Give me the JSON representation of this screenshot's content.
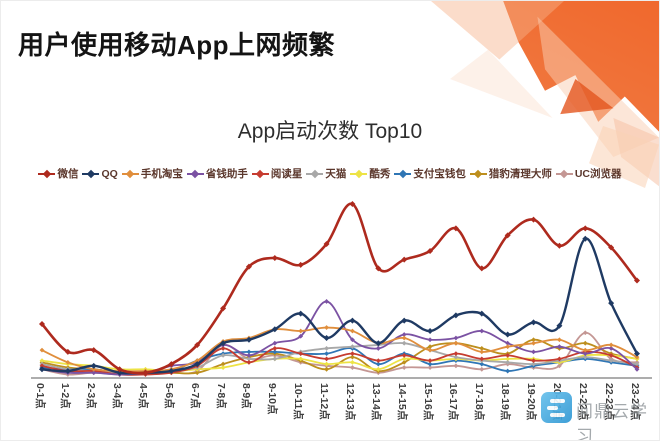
{
  "header": {
    "title": "用户使用移动App上网频繁"
  },
  "watermark": {
    "text": "问鼎云学习",
    "logo": "three-bars-app-logo",
    "logo_color": "#47ABDF"
  },
  "colors": {
    "decoration_accent": "#ED6A2D",
    "axis_line": "#ADADAD",
    "legend_text": "#5B372C"
  },
  "chart_data": {
    "type": "line",
    "title": "App启动次数 Top10",
    "legend_position": "top",
    "grid": false,
    "y_axis_visible": false,
    "ylim": [
      0,
      112
    ],
    "value_scale": "relative 0-100 (chart shows no numeric y labels)",
    "categories": [
      "0-1点",
      "1-2点",
      "2-3点",
      "3-4点",
      "4-5点",
      "5-6点",
      "6-7点",
      "7-8点",
      "8-9点",
      "9-10点",
      "10-11点",
      "11-12点",
      "12-13点",
      "13-14点",
      "14-15点",
      "15-16点",
      "16-17点",
      "17-18点",
      "18-19点",
      "19-20点",
      "20-21点",
      "21-22点",
      "22-23点",
      "23-24点"
    ],
    "series": [
      {
        "name": "微信",
        "color": "#AE2A1E",
        "values": [
          31,
          15,
          16,
          5,
          3,
          8,
          19,
          40,
          64,
          69,
          65,
          77,
          100,
          63,
          68,
          73,
          86,
          63,
          82,
          91,
          76,
          86,
          75,
          56
        ]
      },
      {
        "name": "QQ",
        "color": "#1F3A63",
        "values": [
          5,
          4,
          7,
          3,
          3,
          4,
          8,
          20,
          22,
          28,
          37,
          23,
          33,
          20,
          33,
          27,
          36,
          37,
          25,
          32,
          30,
          80,
          43,
          14
        ]
      },
      {
        "name": "手机淘宝",
        "color": "#E08E3C",
        "values": [
          16,
          9,
          5,
          4,
          4,
          5,
          10,
          21,
          23,
          28,
          27,
          29,
          27,
          20,
          23,
          16,
          20,
          15,
          18,
          20,
          22,
          16,
          19,
          12
        ]
      },
      {
        "name": "省钱助手",
        "color": "#7B52A3",
        "values": [
          5,
          3,
          3,
          2,
          3,
          7,
          9,
          19,
          13,
          20,
          24,
          44,
          22,
          17,
          25,
          22,
          23,
          27,
          20,
          15,
          18,
          14,
          17,
          5
        ]
      },
      {
        "name": "阅读星",
        "color": "#C63C30",
        "values": [
          7,
          4,
          4,
          2,
          2,
          3,
          7,
          17,
          9,
          17,
          14,
          11,
          14,
          10,
          13,
          10,
          14,
          11,
          13,
          10,
          11,
          15,
          13,
          6
        ]
      },
      {
        "name": "天猫",
        "color": "#A8A8A8",
        "values": [
          8,
          5,
          4,
          3,
          3,
          4,
          6,
          13,
          11,
          11,
          15,
          17,
          18,
          19,
          20,
          16,
          12,
          10,
          9,
          8,
          10,
          12,
          10,
          8
        ]
      },
      {
        "name": "酷秀",
        "color": "#EDE345",
        "values": [
          10,
          8,
          7,
          5,
          5,
          4,
          5,
          6,
          9,
          11,
          11,
          8,
          9,
          5,
          11,
          10,
          11,
          10,
          11,
          11,
          9,
          13,
          13,
          11
        ]
      },
      {
        "name": "支付宝钱包",
        "color": "#2F76B5",
        "values": [
          6,
          5,
          5,
          3,
          3,
          4,
          10,
          14,
          15,
          15,
          14,
          14,
          17,
          8,
          14,
          8,
          10,
          8,
          4,
          7,
          9,
          11,
          9,
          7
        ]
      },
      {
        "name": "猎豹清理大师",
        "color": "#BD8F1E",
        "values": [
          9,
          6,
          5,
          3,
          3,
          3,
          3,
          8,
          12,
          14,
          10,
          5,
          12,
          4,
          9,
          18,
          20,
          17,
          14,
          22,
          17,
          20,
          14,
          11
        ]
      },
      {
        "name": "UC浏览器",
        "color": "#C49794",
        "values": [
          5,
          2,
          3,
          2,
          2,
          3,
          4,
          19,
          11,
          13,
          9,
          7,
          6,
          3,
          6,
          6,
          7,
          5,
          8,
          6,
          7,
          26,
          11,
          9
        ]
      }
    ]
  }
}
